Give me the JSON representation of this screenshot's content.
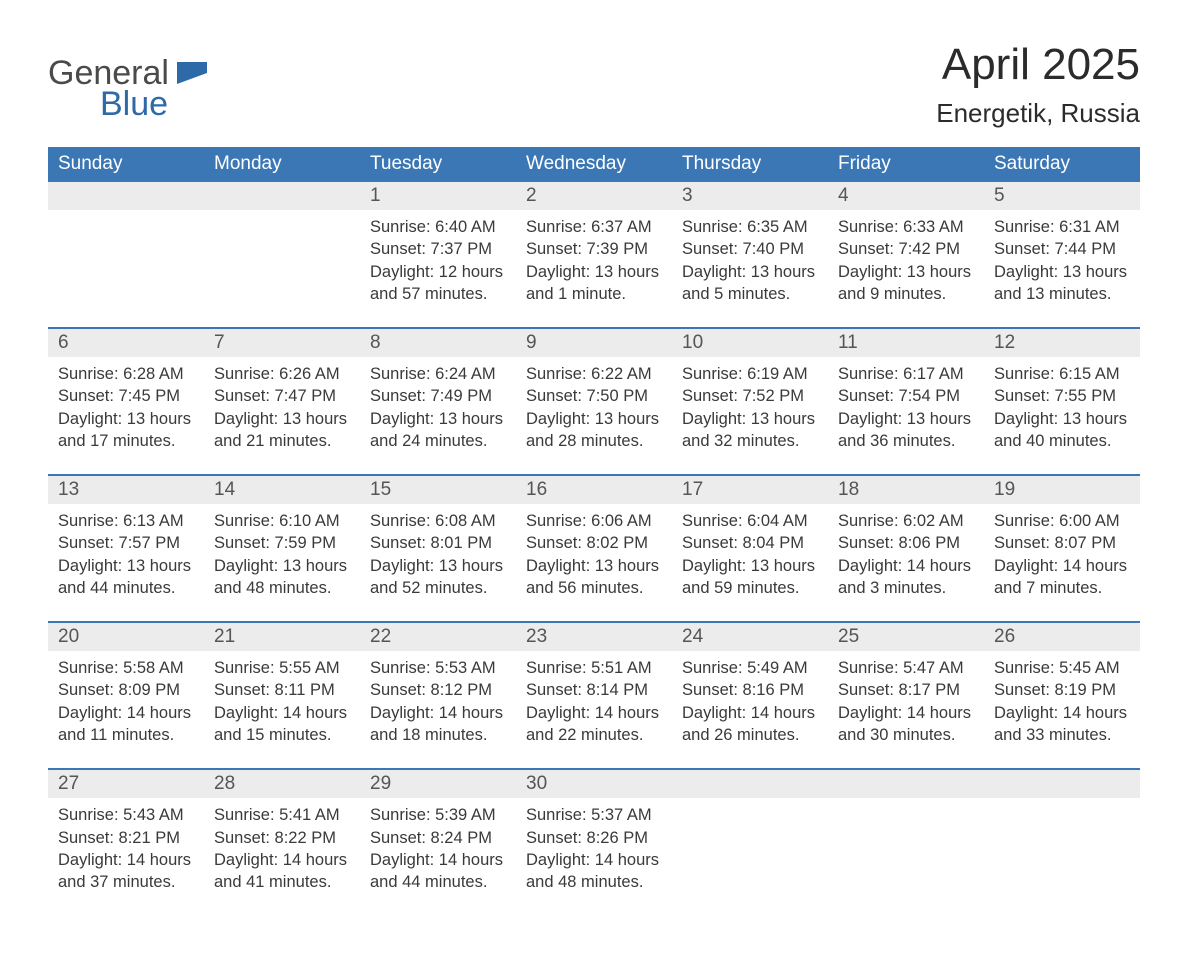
{
  "logo": {
    "text1": "General",
    "text2": "Blue",
    "flag_color": "#2f6aa8"
  },
  "title": "April 2025",
  "location": "Energetik, Russia",
  "colors": {
    "header_bg": "#3b77b5",
    "header_text": "#ffffff",
    "daynum_bg": "#ececec",
    "row_border": "#3b77b5",
    "body_text": "#3a3a3a",
    "page_bg": "#ffffff"
  },
  "day_names": [
    "Sunday",
    "Monday",
    "Tuesday",
    "Wednesday",
    "Thursday",
    "Friday",
    "Saturday"
  ],
  "weeks": [
    [
      null,
      null,
      {
        "n": "1",
        "sr": "Sunrise: 6:40 AM",
        "ss": "Sunset: 7:37 PM",
        "d1": "Daylight: 12 hours",
        "d2": "and 57 minutes."
      },
      {
        "n": "2",
        "sr": "Sunrise: 6:37 AM",
        "ss": "Sunset: 7:39 PM",
        "d1": "Daylight: 13 hours",
        "d2": "and 1 minute."
      },
      {
        "n": "3",
        "sr": "Sunrise: 6:35 AM",
        "ss": "Sunset: 7:40 PM",
        "d1": "Daylight: 13 hours",
        "d2": "and 5 minutes."
      },
      {
        "n": "4",
        "sr": "Sunrise: 6:33 AM",
        "ss": "Sunset: 7:42 PM",
        "d1": "Daylight: 13 hours",
        "d2": "and 9 minutes."
      },
      {
        "n": "5",
        "sr": "Sunrise: 6:31 AM",
        "ss": "Sunset: 7:44 PM",
        "d1": "Daylight: 13 hours",
        "d2": "and 13 minutes."
      }
    ],
    [
      {
        "n": "6",
        "sr": "Sunrise: 6:28 AM",
        "ss": "Sunset: 7:45 PM",
        "d1": "Daylight: 13 hours",
        "d2": "and 17 minutes."
      },
      {
        "n": "7",
        "sr": "Sunrise: 6:26 AM",
        "ss": "Sunset: 7:47 PM",
        "d1": "Daylight: 13 hours",
        "d2": "and 21 minutes."
      },
      {
        "n": "8",
        "sr": "Sunrise: 6:24 AM",
        "ss": "Sunset: 7:49 PM",
        "d1": "Daylight: 13 hours",
        "d2": "and 24 minutes."
      },
      {
        "n": "9",
        "sr": "Sunrise: 6:22 AM",
        "ss": "Sunset: 7:50 PM",
        "d1": "Daylight: 13 hours",
        "d2": "and 28 minutes."
      },
      {
        "n": "10",
        "sr": "Sunrise: 6:19 AM",
        "ss": "Sunset: 7:52 PM",
        "d1": "Daylight: 13 hours",
        "d2": "and 32 minutes."
      },
      {
        "n": "11",
        "sr": "Sunrise: 6:17 AM",
        "ss": "Sunset: 7:54 PM",
        "d1": "Daylight: 13 hours",
        "d2": "and 36 minutes."
      },
      {
        "n": "12",
        "sr": "Sunrise: 6:15 AM",
        "ss": "Sunset: 7:55 PM",
        "d1": "Daylight: 13 hours",
        "d2": "and 40 minutes."
      }
    ],
    [
      {
        "n": "13",
        "sr": "Sunrise: 6:13 AM",
        "ss": "Sunset: 7:57 PM",
        "d1": "Daylight: 13 hours",
        "d2": "and 44 minutes."
      },
      {
        "n": "14",
        "sr": "Sunrise: 6:10 AM",
        "ss": "Sunset: 7:59 PM",
        "d1": "Daylight: 13 hours",
        "d2": "and 48 minutes."
      },
      {
        "n": "15",
        "sr": "Sunrise: 6:08 AM",
        "ss": "Sunset: 8:01 PM",
        "d1": "Daylight: 13 hours",
        "d2": "and 52 minutes."
      },
      {
        "n": "16",
        "sr": "Sunrise: 6:06 AM",
        "ss": "Sunset: 8:02 PM",
        "d1": "Daylight: 13 hours",
        "d2": "and 56 minutes."
      },
      {
        "n": "17",
        "sr": "Sunrise: 6:04 AM",
        "ss": "Sunset: 8:04 PM",
        "d1": "Daylight: 13 hours",
        "d2": "and 59 minutes."
      },
      {
        "n": "18",
        "sr": "Sunrise: 6:02 AM",
        "ss": "Sunset: 8:06 PM",
        "d1": "Daylight: 14 hours",
        "d2": "and 3 minutes."
      },
      {
        "n": "19",
        "sr": "Sunrise: 6:00 AM",
        "ss": "Sunset: 8:07 PM",
        "d1": "Daylight: 14 hours",
        "d2": "and 7 minutes."
      }
    ],
    [
      {
        "n": "20",
        "sr": "Sunrise: 5:58 AM",
        "ss": "Sunset: 8:09 PM",
        "d1": "Daylight: 14 hours",
        "d2": "and 11 minutes."
      },
      {
        "n": "21",
        "sr": "Sunrise: 5:55 AM",
        "ss": "Sunset: 8:11 PM",
        "d1": "Daylight: 14 hours",
        "d2": "and 15 minutes."
      },
      {
        "n": "22",
        "sr": "Sunrise: 5:53 AM",
        "ss": "Sunset: 8:12 PM",
        "d1": "Daylight: 14 hours",
        "d2": "and 18 minutes."
      },
      {
        "n": "23",
        "sr": "Sunrise: 5:51 AM",
        "ss": "Sunset: 8:14 PM",
        "d1": "Daylight: 14 hours",
        "d2": "and 22 minutes."
      },
      {
        "n": "24",
        "sr": "Sunrise: 5:49 AM",
        "ss": "Sunset: 8:16 PM",
        "d1": "Daylight: 14 hours",
        "d2": "and 26 minutes."
      },
      {
        "n": "25",
        "sr": "Sunrise: 5:47 AM",
        "ss": "Sunset: 8:17 PM",
        "d1": "Daylight: 14 hours",
        "d2": "and 30 minutes."
      },
      {
        "n": "26",
        "sr": "Sunrise: 5:45 AM",
        "ss": "Sunset: 8:19 PM",
        "d1": "Daylight: 14 hours",
        "d2": "and 33 minutes."
      }
    ],
    [
      {
        "n": "27",
        "sr": "Sunrise: 5:43 AM",
        "ss": "Sunset: 8:21 PM",
        "d1": "Daylight: 14 hours",
        "d2": "and 37 minutes."
      },
      {
        "n": "28",
        "sr": "Sunrise: 5:41 AM",
        "ss": "Sunset: 8:22 PM",
        "d1": "Daylight: 14 hours",
        "d2": "and 41 minutes."
      },
      {
        "n": "29",
        "sr": "Sunrise: 5:39 AM",
        "ss": "Sunset: 8:24 PM",
        "d1": "Daylight: 14 hours",
        "d2": "and 44 minutes."
      },
      {
        "n": "30",
        "sr": "Sunrise: 5:37 AM",
        "ss": "Sunset: 8:26 PM",
        "d1": "Daylight: 14 hours",
        "d2": "and 48 minutes."
      },
      null,
      null,
      null
    ]
  ]
}
